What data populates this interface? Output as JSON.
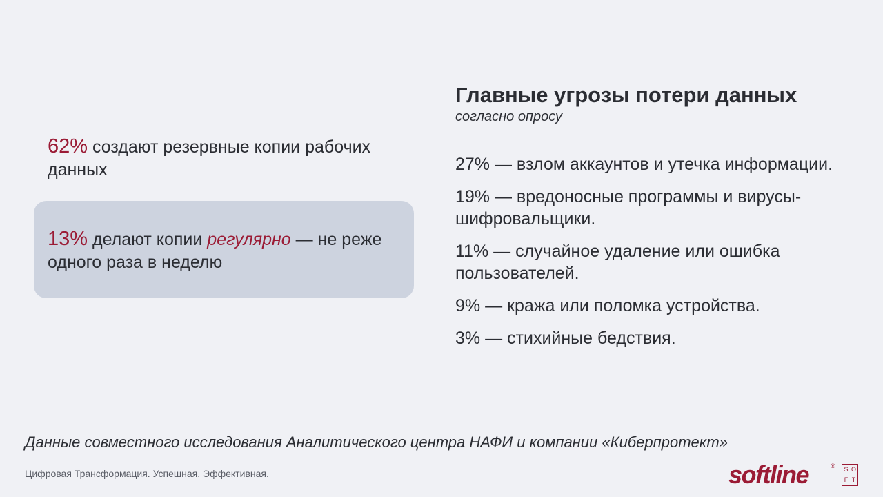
{
  "stats": {
    "backup": {
      "percent": "62%",
      "text": " создают резервные копии рабочих данных"
    },
    "regular": {
      "percent": "13%",
      "text_before": " делают копии ",
      "emphasis": "регулярно",
      "text_after": " — не реже одного раза в неделю"
    }
  },
  "threats": {
    "title": "Главные угрозы потери данных",
    "subtitle": "согласно опросу",
    "items": [
      "27% — взлом аккаунтов и утечка информации.",
      "19% — вредоносные программы и вирусы-шифровальщики.",
      "11% — случайное удаление или ошибка пользователей.",
      "9% — кража или поломка устройства.",
      "3% — стихийные бедствия."
    ]
  },
  "footer": {
    "source": "Данные совместного исследования Аналитического центра НАФИ и компании «Киберпротект»",
    "tagline": "Цифровая Трансформация. Успешная. Эффективная.",
    "logo": {
      "word": "softline",
      "reg": "®",
      "badge": [
        "S",
        "O",
        "F",
        "T"
      ]
    }
  },
  "colors": {
    "accent": "#9b1b35",
    "text": "#2b2d33",
    "box": "#cdd3df",
    "background": "#f0f1f5"
  }
}
